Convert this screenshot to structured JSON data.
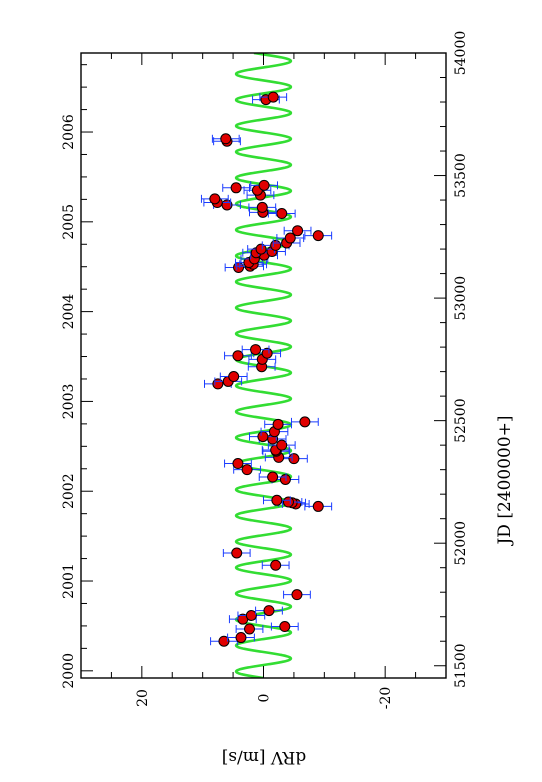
{
  "chart_data": {
    "type": "scatter",
    "orientation": "rotated-90",
    "ylabel": "dRV  [m/s]",
    "jd_label": "JD  [2400000+]",
    "ylim": [
      -30,
      30
    ],
    "jd_range": [
      51450,
      54000
    ],
    "year_range": [
      1999.92,
      2006.88
    ],
    "dRV_ticks": [
      20,
      0,
      -20
    ],
    "dRV_tick_labels": [
      "20",
      "0",
      "-20"
    ],
    "jd_ticks": [
      51500,
      52000,
      52500,
      53000,
      53500,
      54000
    ],
    "jd_tick_labels": [
      "51500",
      "52000",
      "52500",
      "53000",
      "53500",
      "54000"
    ],
    "year_ticks": [
      2000,
      2001,
      2002,
      2003,
      2004,
      2005,
      2006
    ],
    "year_tick_labels": [
      "2000",
      "2001",
      "2002",
      "2003",
      "2004",
      "2005",
      "2006"
    ],
    "series": [
      {
        "kind": "data",
        "marker": "circle",
        "points": [
          {
            "jd": 51600,
            "rv": 6.5,
            "err": 2.2
          },
          {
            "jd": 51615,
            "rv": 3.7,
            "err": 2.2
          },
          {
            "jd": 51650,
            "rv": 2.3,
            "err": 2.2
          },
          {
            "jd": 51660,
            "rv": -3.5,
            "err": 2.2
          },
          {
            "jd": 51690,
            "rv": 3.4,
            "err": 2.2
          },
          {
            "jd": 51705,
            "rv": 2.0,
            "err": 2.2
          },
          {
            "jd": 51725,
            "rv": -0.9,
            "err": 2.2
          },
          {
            "jd": 51790,
            "rv": -5.5,
            "err": 2.2
          },
          {
            "jd": 51910,
            "rv": -2.0,
            "err": 2.2
          },
          {
            "jd": 51960,
            "rv": 4.4,
            "err": 2.2
          },
          {
            "jd": 52150,
            "rv": -9.0,
            "err": 2.2
          },
          {
            "jd": 52160,
            "rv": -5.3,
            "err": 2.2
          },
          {
            "jd": 52165,
            "rv": -4.7,
            "err": 2.2
          },
          {
            "jd": 52168,
            "rv": -4.1,
            "err": 2.2
          },
          {
            "jd": 52175,
            "rv": -2.2,
            "err": 2.2
          },
          {
            "jd": 52260,
            "rv": -3.6,
            "err": 2.2
          },
          {
            "jd": 52270,
            "rv": -1.5,
            "err": 2.2
          },
          {
            "jd": 52300,
            "rv": 2.7,
            "err": 2.2
          },
          {
            "jd": 52325,
            "rv": 4.2,
            "err": 2.2
          },
          {
            "jd": 52345,
            "rv": -5.0,
            "err": 2.2
          },
          {
            "jd": 52350,
            "rv": -2.5,
            "err": 2.2
          },
          {
            "jd": 52375,
            "rv": -2.1,
            "err": 2.2
          },
          {
            "jd": 52380,
            "rv": -2.0,
            "err": 2.2
          },
          {
            "jd": 52400,
            "rv": -3.0,
            "err": 2.2
          },
          {
            "jd": 52425,
            "rv": -1.5,
            "err": 2.2
          },
          {
            "jd": 52435,
            "rv": 0.1,
            "err": 2.2
          },
          {
            "jd": 52455,
            "rv": -1.8,
            "err": 2.2
          },
          {
            "jd": 52485,
            "rv": -2.4,
            "err": 2.2
          },
          {
            "jd": 52495,
            "rv": -6.8,
            "err": 2.2
          },
          {
            "jd": 52650,
            "rv": 7.5,
            "err": 2.2
          },
          {
            "jd": 52660,
            "rv": 5.8,
            "err": 2.2
          },
          {
            "jd": 52680,
            "rv": 4.9,
            "err": 2.2
          },
          {
            "jd": 52720,
            "rv": 0.3,
            "err": 2.2
          },
          {
            "jd": 52750,
            "rv": 0.2,
            "err": 2.2
          },
          {
            "jd": 52765,
            "rv": 4.2,
            "err": 2.2
          },
          {
            "jd": 52775,
            "rv": -0.6,
            "err": 2.2
          },
          {
            "jd": 52790,
            "rv": 1.3,
            "err": 2.2
          },
          {
            "jd": 53125,
            "rv": 4.1,
            "err": 2.2
          },
          {
            "jd": 53130,
            "rv": 2.2,
            "err": 2.2
          },
          {
            "jd": 53138,
            "rv": 1.7,
            "err": 2.2
          },
          {
            "jd": 53145,
            "rv": 2.4,
            "err": 2.2
          },
          {
            "jd": 53160,
            "rv": 1.5,
            "err": 2.2
          },
          {
            "jd": 53175,
            "rv": -0.1,
            "err": 2.2
          },
          {
            "jd": 53185,
            "rv": 1.2,
            "err": 2.2
          },
          {
            "jd": 53190,
            "rv": -1.4,
            "err": 2.2
          },
          {
            "jd": 53200,
            "rv": 0.4,
            "err": 2.2
          },
          {
            "jd": 53215,
            "rv": -2.0,
            "err": 2.2
          },
          {
            "jd": 53225,
            "rv": -3.8,
            "err": 2.2
          },
          {
            "jd": 53245,
            "rv": -4.4,
            "err": 2.2
          },
          {
            "jd": 53255,
            "rv": -9.0,
            "err": 2.2
          },
          {
            "jd": 53275,
            "rv": -5.6,
            "err": 2.2
          },
          {
            "jd": 53345,
            "rv": -3.0,
            "err": 2.2
          },
          {
            "jd": 53350,
            "rv": 0.1,
            "err": 2.2
          },
          {
            "jd": 53370,
            "rv": 0.2,
            "err": 2.2
          },
          {
            "jd": 53380,
            "rv": 6.0,
            "err": 2.2
          },
          {
            "jd": 53390,
            "rv": 7.6,
            "err": 2.2
          },
          {
            "jd": 53405,
            "rv": 8.0,
            "err": 2.2
          },
          {
            "jd": 53420,
            "rv": 0.5,
            "err": 2.2
          },
          {
            "jd": 53440,
            "rv": 1.0,
            "err": 2.2
          },
          {
            "jd": 53450,
            "rv": 4.5,
            "err": 2.2
          },
          {
            "jd": 53460,
            "rv": -0.1,
            "err": 2.2
          },
          {
            "jd": 53640,
            "rv": 6.0,
            "err": 2.2
          },
          {
            "jd": 53650,
            "rv": 6.2,
            "err": 2.2
          },
          {
            "jd": 53810,
            "rv": -0.4,
            "err": 2.2
          },
          {
            "jd": 53820,
            "rv": -1.6,
            "err": 2.2
          }
        ]
      },
      {
        "kind": "model",
        "curve": "sinusoid",
        "amplitude": 4.5,
        "period_days": 106,
        "phase_jd": 51450,
        "offset": 0
      }
    ],
    "colors": {
      "marker_fill": "#e00000",
      "marker_edge": "#000000",
      "error_bar": "#1a3cff",
      "model_curve": "#33dd33",
      "axis": "#000000"
    }
  }
}
